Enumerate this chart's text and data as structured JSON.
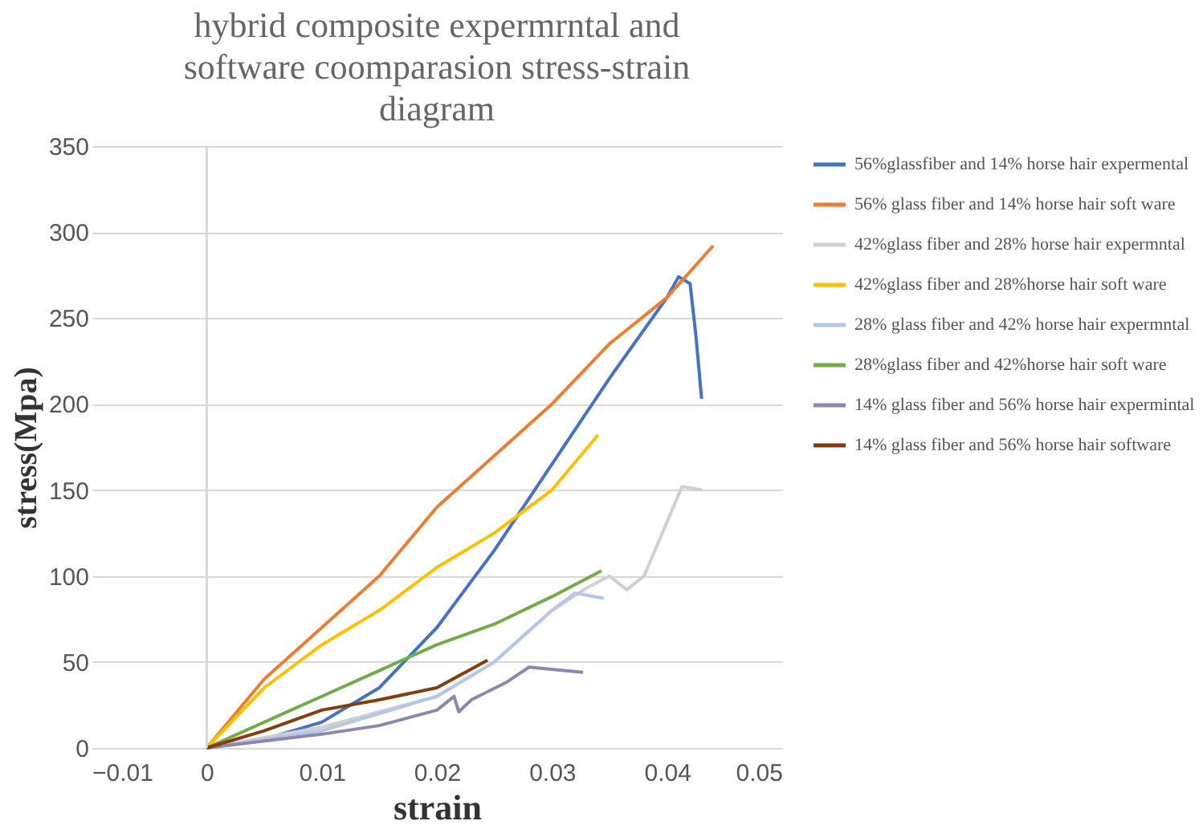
{
  "chart_data": {
    "type": "line",
    "title": [
      "hybrid composite expermrntal and",
      "software coomparasion stress-strain",
      "diagram"
    ],
    "xlabel": "strain",
    "ylabel": "stress(Mpa)",
    "xlim": [
      -0.01,
      0.05
    ],
    "xticks": [
      -0.01,
      0,
      0.01,
      0.02,
      0.03,
      0.04,
      0.05
    ],
    "ylim": [
      0,
      350
    ],
    "yticks": [
      0,
      50,
      100,
      150,
      200,
      250,
      300,
      350
    ],
    "grid": "y",
    "legend": "right",
    "marker": "none",
    "line_style": "solid",
    "series": [
      {
        "name": "56%glassfiber and 14% horse hair expermental",
        "color": "#4472c4",
        "x": [
          0,
          0.005,
          0.01,
          0.015,
          0.02,
          0.025,
          0.03,
          0.035,
          0.04,
          0.041,
          0.042,
          0.0425,
          0.043
        ],
        "values": [
          0,
          5,
          15,
          35,
          70,
          115,
          165,
          215,
          262,
          274,
          270,
          240,
          203
        ]
      },
      {
        "name": "56% glass fiber and 14% horse hair soft ware",
        "color": "#ed7d31",
        "x": [
          0,
          0.005,
          0.01,
          0.015,
          0.02,
          0.025,
          0.03,
          0.035,
          0.04,
          0.044
        ],
        "values": [
          0,
          40,
          70,
          100,
          140,
          170,
          200,
          235,
          262,
          292
        ]
      },
      {
        "name": "42%glass fiber and 28% horse hair expermntal",
        "color": "#d0d0d0",
        "x": [
          0,
          0.01,
          0.02,
          0.025,
          0.03,
          0.033,
          0.035,
          0.0365,
          0.038,
          0.0413,
          0.043
        ],
        "values": [
          0,
          12,
          30,
          50,
          80,
          93,
          100,
          92,
          100,
          152,
          150
        ]
      },
      {
        "name": "42%glass fiber and 28%horse hair soft ware",
        "color": "#ffc000",
        "x": [
          0,
          0.005,
          0.01,
          0.015,
          0.02,
          0.025,
          0.03,
          0.034
        ],
        "values": [
          0,
          35,
          60,
          80,
          105,
          125,
          150,
          182
        ]
      },
      {
        "name": "28% glass fiber and 42% horse hair expermntal",
        "color": "#b4c7e7",
        "x": [
          0,
          0.01,
          0.02,
          0.025,
          0.03,
          0.032,
          0.0345
        ],
        "values": [
          0,
          10,
          30,
          50,
          80,
          90,
          87
        ]
      },
      {
        "name": "28%glass fiber and 42%horse hair soft ware",
        "color": "#70ad47",
        "x": [
          0,
          0.005,
          0.01,
          0.015,
          0.02,
          0.025,
          0.03,
          0.0343
        ],
        "values": [
          0,
          15,
          30,
          45,
          60,
          72,
          88,
          103
        ]
      },
      {
        "name": "14% glass fiber and 56% horse hair expermintal",
        "color": "#8e86ae",
        "x": [
          0,
          0.01,
          0.015,
          0.02,
          0.0215,
          0.0219,
          0.023,
          0.026,
          0.028,
          0.031,
          0.0327
        ],
        "values": [
          0,
          8,
          13,
          22,
          30,
          21,
          28,
          38,
          47,
          45,
          44
        ]
      },
      {
        "name": "14% glass fiber and 56% horse hair software",
        "color": "#843c0c",
        "x": [
          0,
          0.005,
          0.01,
          0.015,
          0.02,
          0.0244
        ],
        "values": [
          0,
          10,
          22,
          28,
          35,
          51
        ]
      }
    ]
  }
}
